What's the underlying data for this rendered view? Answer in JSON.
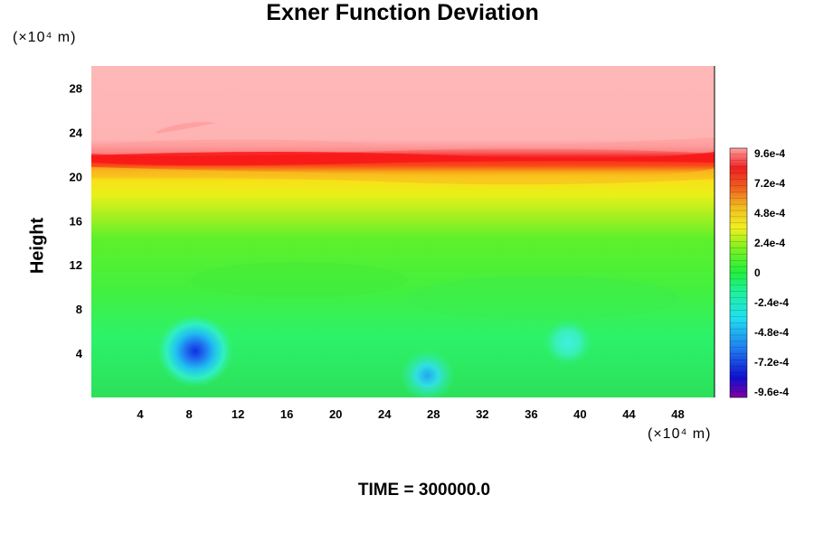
{
  "chart_data": {
    "type": "heatmap",
    "title": "Exner Function Deviation",
    "xlabel": "",
    "ylabel": "Height",
    "x_unit": "(×10⁴ m)",
    "y_unit": "(×10⁴ m)",
    "xlim": [
      0,
      51
    ],
    "ylim": [
      0,
      30
    ],
    "x_ticks": [
      4,
      8,
      12,
      16,
      20,
      24,
      28,
      32,
      36,
      40,
      44,
      48
    ],
    "y_ticks": [
      4,
      8,
      12,
      16,
      20,
      24,
      28
    ],
    "colorbar": {
      "range": [
        -0.00096,
        0.00096
      ],
      "tick_values": [
        0.00096,
        0.00072,
        0.00048,
        0.00024,
        0,
        -0.00024,
        -0.00048,
        -0.00072,
        -0.00096
      ],
      "tick_labels": [
        "9.6e-4",
        "7.2e-4",
        "4.8e-4",
        "2.4e-4",
        "0",
        "-2.4e-4",
        "-4.8e-4",
        "-7.2e-4",
        "-9.6e-4"
      ]
    },
    "field_features": {
      "upper_layer": {
        "height_range": [
          23,
          30
        ],
        "value": 0.00096
      },
      "red_band": {
        "height_range": [
          21,
          22.5
        ],
        "value": 0.0008
      },
      "yellow_band": {
        "height_range": [
          18,
          21
        ],
        "value": 0.0003
      },
      "minima": [
        {
          "x": 8.5,
          "height": 4.2,
          "value": -0.00085
        },
        {
          "x": 27.5,
          "height": 2,
          "value": -0.0004
        },
        {
          "x": 39,
          "height": 5,
          "value": -0.0003
        }
      ]
    },
    "grid": false,
    "legend": "colorbar-right"
  },
  "footer": {
    "time_label": "TIME = 300000.0"
  }
}
